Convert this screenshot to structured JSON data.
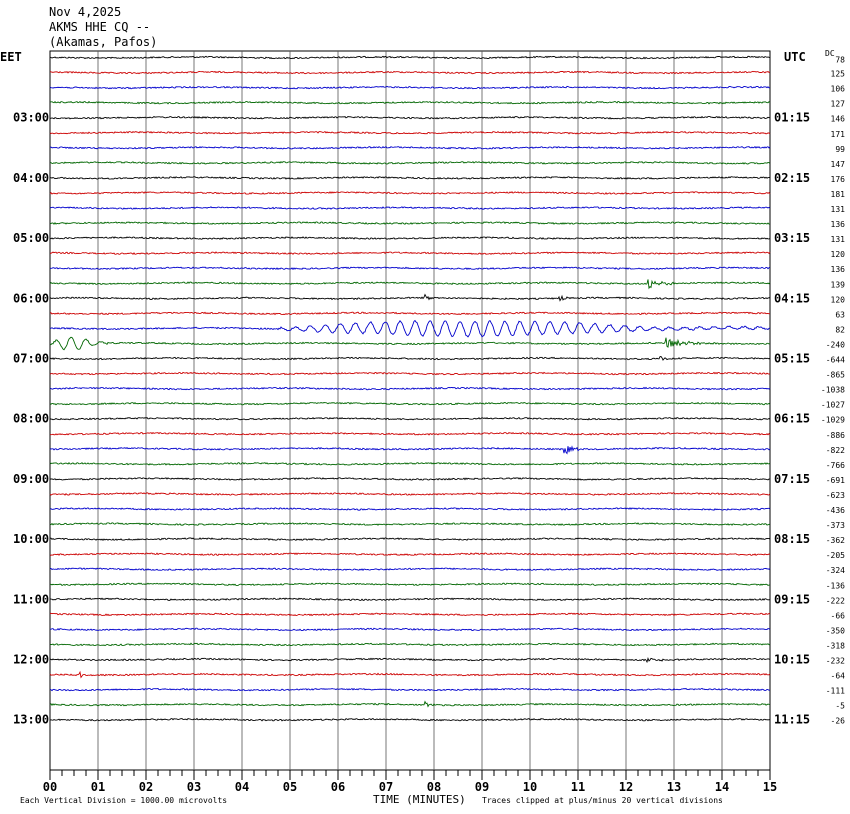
{
  "header": {
    "date": "Nov 4,2025",
    "station": "AKMS HHE CQ --",
    "location": "(Akamas, Pafos)"
  },
  "chart_data": {
    "type": "line",
    "title": "",
    "left_zone_label": "EET",
    "right_zone_label": "UTC",
    "dc_label": "DC",
    "xlabel": "TIME (MINUTES)",
    "xlim": [
      0,
      15
    ],
    "x_ticks": [
      "00",
      "01",
      "02",
      "03",
      "04",
      "05",
      "06",
      "07",
      "08",
      "09",
      "10",
      "11",
      "12",
      "13",
      "14",
      "15"
    ],
    "left_hour_labels": [
      {
        "label": "03:00",
        "row": 4
      },
      {
        "label": "04:00",
        "row": 8
      },
      {
        "label": "05:00",
        "row": 12
      },
      {
        "label": "06:00",
        "row": 16
      },
      {
        "label": "07:00",
        "row": 20
      },
      {
        "label": "08:00",
        "row": 24
      },
      {
        "label": "09:00",
        "row": 28
      },
      {
        "label": "10:00",
        "row": 32
      },
      {
        "label": "11:00",
        "row": 36
      },
      {
        "label": "12:00",
        "row": 40
      },
      {
        "label": "13:00",
        "row": 44
      }
    ],
    "right_hour_labels": [
      {
        "label": "01:15",
        "row": 4
      },
      {
        "label": "02:15",
        "row": 8
      },
      {
        "label": "03:15",
        "row": 12
      },
      {
        "label": "04:15",
        "row": 16
      },
      {
        "label": "05:15",
        "row": 20
      },
      {
        "label": "06:15",
        "row": 24
      },
      {
        "label": "07:15",
        "row": 28
      },
      {
        "label": "08:15",
        "row": 32
      },
      {
        "label": "09:15",
        "row": 36
      },
      {
        "label": "10:15",
        "row": 40
      },
      {
        "label": "11:15",
        "row": 44
      }
    ],
    "dc_offsets": [
      "78",
      "125",
      "106",
      "127",
      "146",
      "171",
      "99",
      "147",
      "176",
      "181",
      "131",
      "136",
      "131",
      "120",
      "136",
      "139",
      "120",
      "63",
      "82",
      "-240",
      "-644",
      "-865",
      "-1038",
      "-1027",
      "-1029",
      "-886",
      "-822",
      "-766",
      "-691",
      "-623",
      "-436",
      "-373",
      "-362",
      "-205",
      "-324",
      "-136",
      "-222",
      "-66",
      "-350",
      "-318",
      "-232",
      "-64",
      "-111",
      "-5",
      "-26"
    ],
    "trace_colors": [
      "#000000",
      "#cc0000",
      "#0000cc",
      "#006600"
    ],
    "events": [
      {
        "row": 15,
        "start_min": 12.45,
        "end_min": 13.2,
        "amp": 7
      },
      {
        "row": 16,
        "start_min": 7.8,
        "end_min": 8.1,
        "amp": 6
      },
      {
        "row": 16,
        "start_min": 10.6,
        "end_min": 11.0,
        "amp": 3
      },
      {
        "row": 18,
        "start_min": 4.8,
        "end_min": 15,
        "amp": 7,
        "kind": "surface"
      },
      {
        "row": 19,
        "start_min": 0,
        "end_min": 1.2,
        "amp": 6,
        "kind": "surface"
      },
      {
        "row": 19,
        "start_min": 12.8,
        "end_min": 14.2,
        "amp": 6
      },
      {
        "row": 20,
        "start_min": 12.7,
        "end_min": 13.0,
        "amp": 5
      },
      {
        "row": 26,
        "start_min": 10.7,
        "end_min": 11.4,
        "amp": 6
      },
      {
        "row": 40,
        "start_min": 12.4,
        "end_min": 13.0,
        "amp": 4
      },
      {
        "row": 41,
        "start_min": 0.6,
        "end_min": 1.0,
        "amp": 4
      },
      {
        "row": 43,
        "start_min": 7.8,
        "end_min": 8.3,
        "amp": 3
      }
    ],
    "grid": true
  },
  "footer": {
    "scale_note": "Each Vertical Division = 1000.00 microvolts",
    "clip_note": "Traces clipped at plus/minus 20 vertical divisions"
  }
}
